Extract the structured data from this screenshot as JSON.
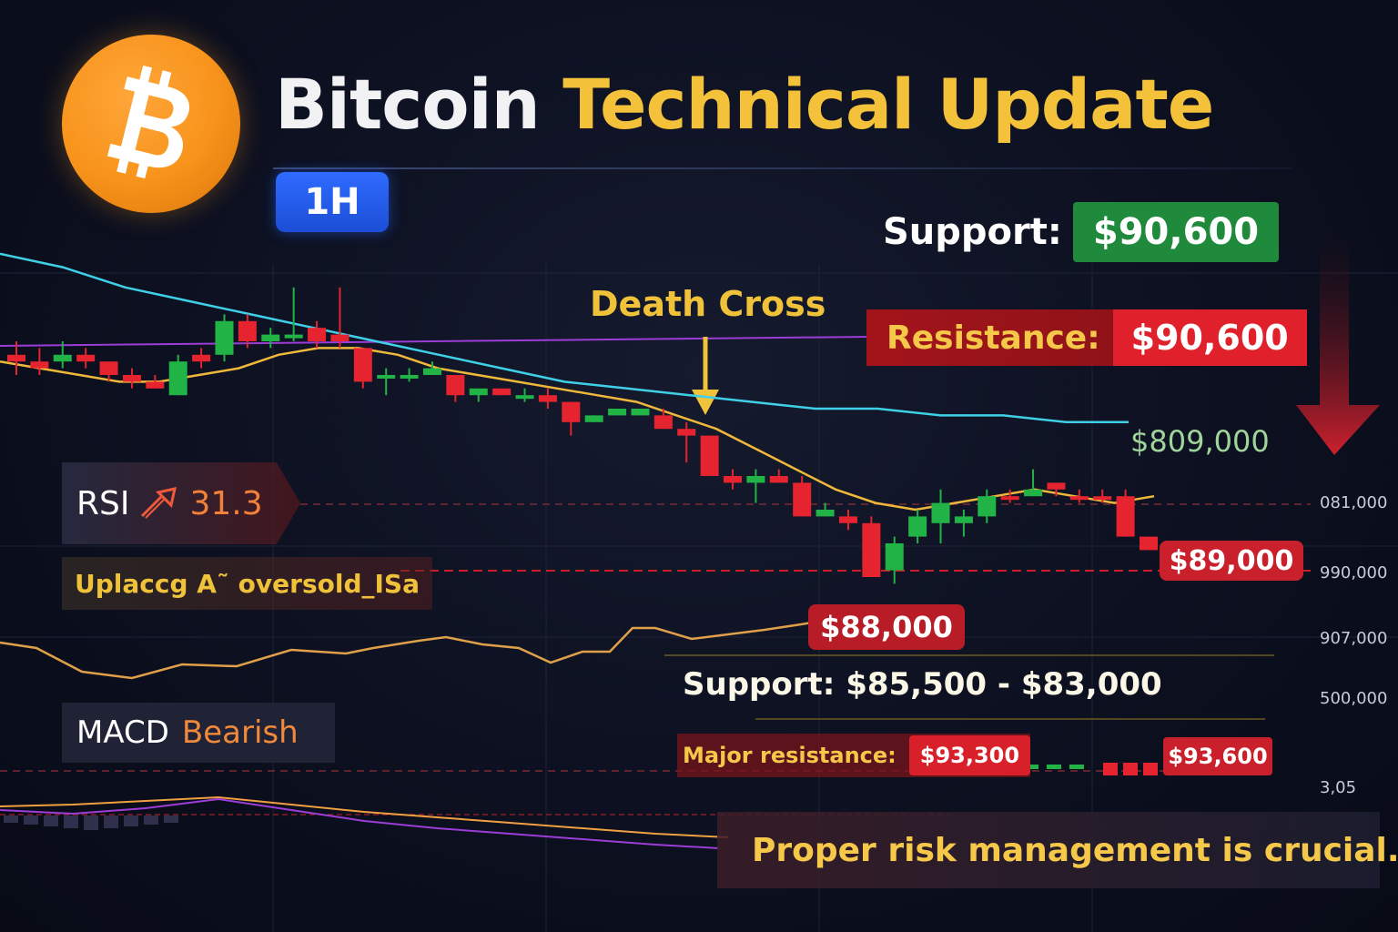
{
  "header": {
    "title_white": "Bitcoin",
    "title_gold": "Technical Update",
    "timeframe": "1H",
    "logo_icon": "bitcoin-logo-icon"
  },
  "colors": {
    "bitcoin_orange": "#f7931a",
    "title_gold": "#f3c13a",
    "bull_green": "#22b347",
    "bear_red": "#e5242f",
    "ma_short": "#f0b83a",
    "ma_long": "#3fd0e8",
    "purple_line": "#9b3dd6"
  },
  "annotations": {
    "support_label": "Support:",
    "support_value": "$90,600",
    "resistance_label": "Resistance:",
    "resistance_value": "$90,600",
    "death_cross": "Death Cross",
    "green_price": "$809,000",
    "price_89": "$89,000",
    "price_88": "$88,000",
    "support_range_label": "Support:",
    "support_range_value": "$85,500 - $83,000",
    "major_resistance_label": "Major resistance:",
    "major_resistance_value_1": "$93,300",
    "major_resistance_value_2": "$93,600"
  },
  "indicators": {
    "rsi_label": "RSI",
    "rsi_value": "31.3",
    "rsi_note": "Uplaссg A˜ oversold_ISa",
    "macd_label": "MACD",
    "macd_value": "Bearish"
  },
  "axis_ticks": [
    "081,000",
    "990,000",
    "907,000",
    "500,000",
    "3,05"
  ],
  "warning": {
    "icon": "warning-triangle-icon",
    "text": "Proper risk management is crucial."
  },
  "chart_data": {
    "type": "candlestick",
    "title": "Bitcoin Technical Update",
    "timeframe": "1H",
    "candles": [
      {
        "o": 3,
        "c": 2,
        "h": 5,
        "l": 0,
        "dir": "bear"
      },
      {
        "o": 2,
        "c": 1,
        "h": 4,
        "l": 0,
        "dir": "bear"
      },
      {
        "o": 2,
        "c": 3,
        "h": 5,
        "l": 1,
        "dir": "bull"
      },
      {
        "o": 3,
        "c": 2,
        "h": 4,
        "l": 1,
        "dir": "bear"
      },
      {
        "o": 2,
        "c": 0,
        "h": 2,
        "l": -1,
        "dir": "bear"
      },
      {
        "o": 0,
        "c": -1,
        "h": 1,
        "l": -2,
        "dir": "bear"
      },
      {
        "o": -1,
        "c": -2,
        "h": 0,
        "l": -2,
        "dir": "bear"
      },
      {
        "o": -3,
        "c": 2,
        "h": 3,
        "l": -3,
        "dir": "bull"
      },
      {
        "o": 2,
        "c": 3,
        "h": 4,
        "l": 1,
        "dir": "bear"
      },
      {
        "o": 3,
        "c": 8,
        "h": 9,
        "l": 2,
        "dir": "bull"
      },
      {
        "o": 8,
        "c": 5,
        "h": 9,
        "l": 4,
        "dir": "bear"
      },
      {
        "o": 5,
        "c": 6,
        "h": 7,
        "l": 4,
        "dir": "bull"
      },
      {
        "o": 6,
        "c": 6,
        "h": 13,
        "l": 5,
        "dir": "bull"
      },
      {
        "o": 7,
        "c": 5,
        "h": 8,
        "l": 4,
        "dir": "bear"
      },
      {
        "o": 6,
        "c": 5,
        "h": 13,
        "l": 4,
        "dir": "bear"
      },
      {
        "o": 4,
        "c": -1,
        "h": 4,
        "l": -2,
        "dir": "bear"
      },
      {
        "o": 0,
        "c": 0,
        "h": 1,
        "l": -3,
        "dir": "bull"
      },
      {
        "o": 0,
        "c": 0,
        "h": 1,
        "l": -1,
        "dir": "bull"
      },
      {
        "o": 0,
        "c": 1,
        "h": 2,
        "l": 0,
        "dir": "bull"
      },
      {
        "o": 0,
        "c": -3,
        "h": 0,
        "l": -4,
        "dir": "bear"
      },
      {
        "o": -2,
        "c": -3,
        "h": -2,
        "l": -4,
        "dir": "bull"
      },
      {
        "o": -2,
        "c": -3,
        "h": -2,
        "l": -3,
        "dir": "bear"
      },
      {
        "o": -3,
        "c": -3,
        "h": -2,
        "l": -4,
        "dir": "bull"
      },
      {
        "o": -3,
        "c": -4,
        "h": -2,
        "l": -5,
        "dir": "bear"
      },
      {
        "o": -4,
        "c": -7,
        "h": -4,
        "l": -9,
        "dir": "bear"
      },
      {
        "o": -7,
        "c": -6,
        "h": -6,
        "l": -7,
        "dir": "bull"
      },
      {
        "o": -6,
        "c": -5,
        "h": -5,
        "l": -6,
        "dir": "bull"
      },
      {
        "o": -6,
        "c": -5,
        "h": -5,
        "l": -6,
        "dir": "bull"
      },
      {
        "o": -6,
        "c": -8,
        "h": -5,
        "l": -8,
        "dir": "bear"
      },
      {
        "o": -8,
        "c": -9,
        "h": -7,
        "l": -13,
        "dir": "bear"
      },
      {
        "o": -9,
        "c": -15,
        "h": -9,
        "l": -15,
        "dir": "bear"
      },
      {
        "o": -15,
        "c": -16,
        "h": -14,
        "l": -17,
        "dir": "bear"
      },
      {
        "o": -16,
        "c": -15,
        "h": -14,
        "l": -19,
        "dir": "bull"
      },
      {
        "o": -15,
        "c": -16,
        "h": -14,
        "l": -16,
        "dir": "bear"
      },
      {
        "o": -16,
        "c": -21,
        "h": -15,
        "l": -21,
        "dir": "bear"
      },
      {
        "o": -21,
        "c": -20,
        "h": -19,
        "l": -21,
        "dir": "bull"
      },
      {
        "o": -21,
        "c": -22,
        "h": -20,
        "l": -23,
        "dir": "bear"
      },
      {
        "o": -22,
        "c": -30,
        "h": -21,
        "l": -30,
        "dir": "bear"
      },
      {
        "o": -29,
        "c": -25,
        "h": -24,
        "l": -31,
        "dir": "bull"
      },
      {
        "o": -24,
        "c": -21,
        "h": -20,
        "l": -25,
        "dir": "bull"
      },
      {
        "o": -22,
        "c": -19,
        "h": -17,
        "l": -25,
        "dir": "bull"
      },
      {
        "o": -22,
        "c": -21,
        "h": -20,
        "l": -24,
        "dir": "bull"
      },
      {
        "o": -21,
        "c": -18,
        "h": -17,
        "l": -22,
        "dir": "bull"
      },
      {
        "o": -18,
        "c": -18,
        "h": -17,
        "l": -19,
        "dir": "bear"
      },
      {
        "o": -18,
        "c": -17,
        "h": -14,
        "l": -18,
        "dir": "bull"
      },
      {
        "o": -16,
        "c": -17,
        "h": -16,
        "l": -18,
        "dir": "bear"
      },
      {
        "o": -18,
        "c": -18,
        "h": -17,
        "l": -19,
        "dir": "bear"
      },
      {
        "o": -18,
        "c": -18,
        "h": -17,
        "l": -19,
        "dir": "bear"
      },
      {
        "o": -18,
        "c": -24,
        "h": -17,
        "l": -24,
        "dir": "bear"
      },
      {
        "o": -24,
        "c": -26,
        "h": -24,
        "l": -26,
        "dir": "bear"
      }
    ],
    "moving_averages": [
      {
        "name": "short_ma",
        "color": "#f0b83a",
        "values": [
          2,
          1,
          0,
          -1,
          -1,
          0,
          1,
          3,
          4,
          4,
          3,
          1,
          0,
          -1,
          -2,
          -3,
          -4,
          -6,
          -8,
          -11,
          -14,
          -17,
          -19,
          -20,
          -19,
          -18,
          -17,
          -18,
          -19,
          -18
        ]
      },
      {
        "name": "long_ma",
        "color": "#3fd0e8",
        "values": [
          18,
          16,
          13,
          11,
          9,
          7,
          5,
          3,
          1,
          -1,
          -2,
          -3,
          -4,
          -5,
          -5,
          -6,
          -6,
          -7,
          -7
        ]
      }
    ],
    "indicators": {
      "RSI": 31.3,
      "MACD": "Bearish"
    },
    "levels": {
      "support": "$90,600",
      "resistance": "$90,600",
      "support_range": "$85,500 - $83,000",
      "major_resistance": [
        "$93,300",
        "$93,600"
      ]
    }
  }
}
